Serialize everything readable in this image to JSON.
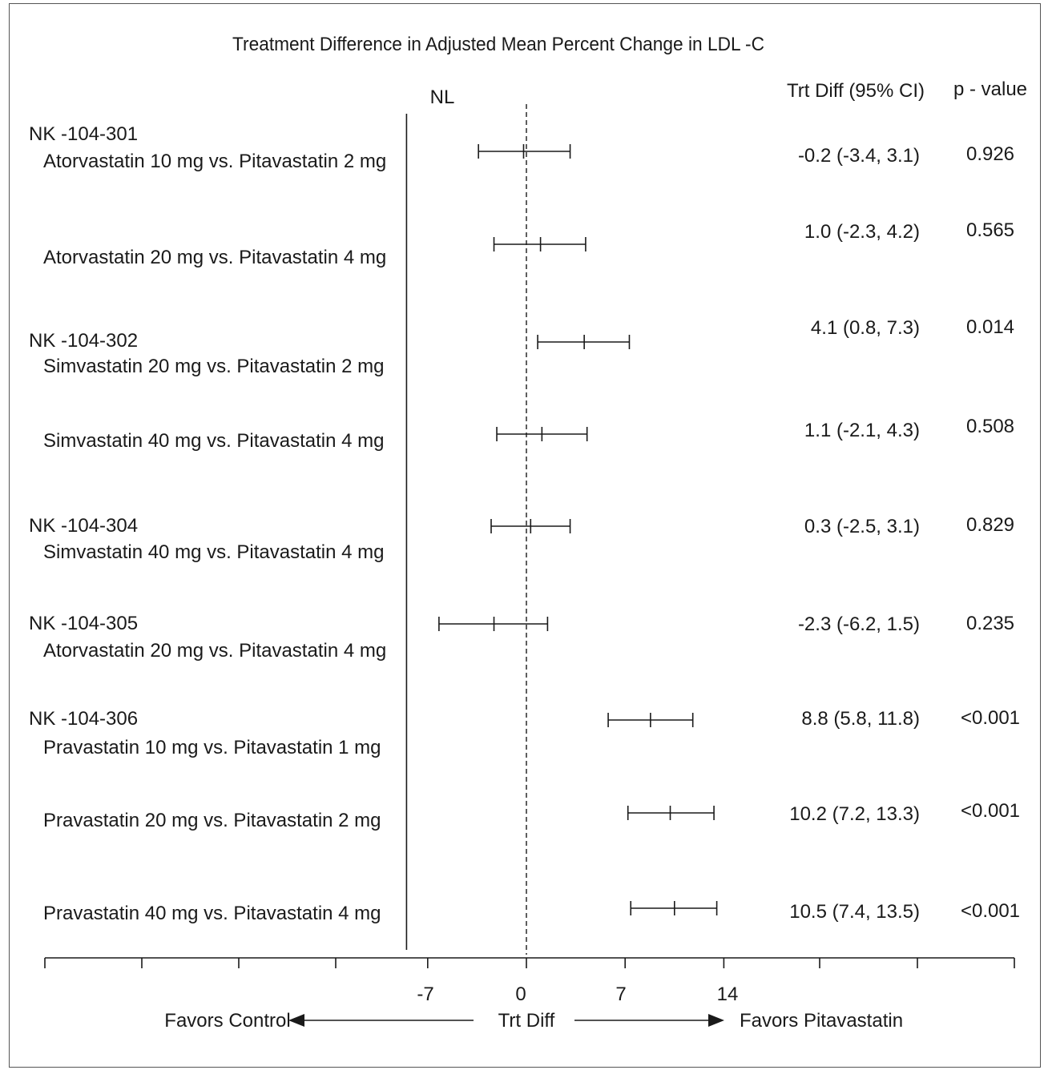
{
  "chart_data": {
    "type": "forest",
    "title": "Treatment Difference in Adjusted Mean Percent Change in LDL -C",
    "reference_line_label": "NL",
    "reference_line_value": -8.5,
    "column_headers": {
      "estimate": "Trt Diff (95% CI)",
      "pvalue": "p - value"
    },
    "rows": [
      {
        "study": "NK -104-301",
        "comparison": "Atorvastatin 10 mg vs. Pitavastatin 2 mg",
        "estimate": -0.2,
        "lower": -3.4,
        "upper": 3.1,
        "ci_text": "-0.2  (-3.4, 3.1)",
        "p_text": "0.926"
      },
      {
        "study": "",
        "comparison": "Atorvastatin 20 mg vs. Pitavastatin 4 mg",
        "estimate": 1.0,
        "lower": -2.3,
        "upper": 4.2,
        "ci_text": "1.0  (-2.3, 4.2)",
        "p_text": "0.565"
      },
      {
        "study": "NK -104-302",
        "comparison": "Simvastatin 20 mg vs. Pitavastatin 2 mg",
        "estimate": 4.1,
        "lower": 0.8,
        "upper": 7.3,
        "ci_text": "4.1  (0.8, 7.3)",
        "p_text": "0.014"
      },
      {
        "study": "",
        "comparison": "Simvastatin 40 mg vs. Pitavastatin 4 mg",
        "estimate": 1.1,
        "lower": -2.1,
        "upper": 4.3,
        "ci_text": "1.1  (-2.1, 4.3)",
        "p_text": "0.508"
      },
      {
        "study": "NK -104-304",
        "comparison": "Simvastatin 40 mg vs. Pitavastatin 4 mg",
        "estimate": 0.3,
        "lower": -2.5,
        "upper": 3.1,
        "ci_text": "0.3  (-2.5, 3.1)",
        "p_text": "0.829"
      },
      {
        "study": "NK -104-305",
        "comparison": "Atorvastatin 20 mg vs. Pitavastatin 4 mg",
        "estimate": -2.3,
        "lower": -6.2,
        "upper": 1.5,
        "ci_text": "-2.3  (-6.2, 1.5)",
        "p_text": "0.235"
      },
      {
        "study": "NK -104-306",
        "comparison": "Pravastatin 10 mg vs. Pitavastatin 1 mg",
        "estimate": 8.8,
        "lower": 5.8,
        "upper": 11.8,
        "ci_text": "8.8  (5.8, 11.8)",
        "p_text": "<0.001"
      },
      {
        "study": "",
        "comparison": "Pravastatin 20 mg vs. Pitavastatin 2 mg",
        "estimate": 10.2,
        "lower": 7.2,
        "upper": 13.3,
        "ci_text": "10.2  (7.2, 13.3)",
        "p_text": "<0.001"
      },
      {
        "study": "",
        "comparison": "Pravastatin 40 mg vs. Pitavastatin 4 mg",
        "estimate": 10.5,
        "lower": 7.4,
        "upper": 13.5,
        "ci_text": "10.5  (7.4, 13.5)",
        "p_text": "<0.001"
      }
    ],
    "x_tick_labels": [
      "-7",
      "0",
      "7",
      "14"
    ],
    "x_ticks": [
      -7,
      0,
      7,
      14
    ],
    "xlim": [
      -34,
      34
    ],
    "xlabel": "Trt Diff",
    "favors_left": "Favors Control",
    "favors_right": "Favors Pitavastatin"
  }
}
